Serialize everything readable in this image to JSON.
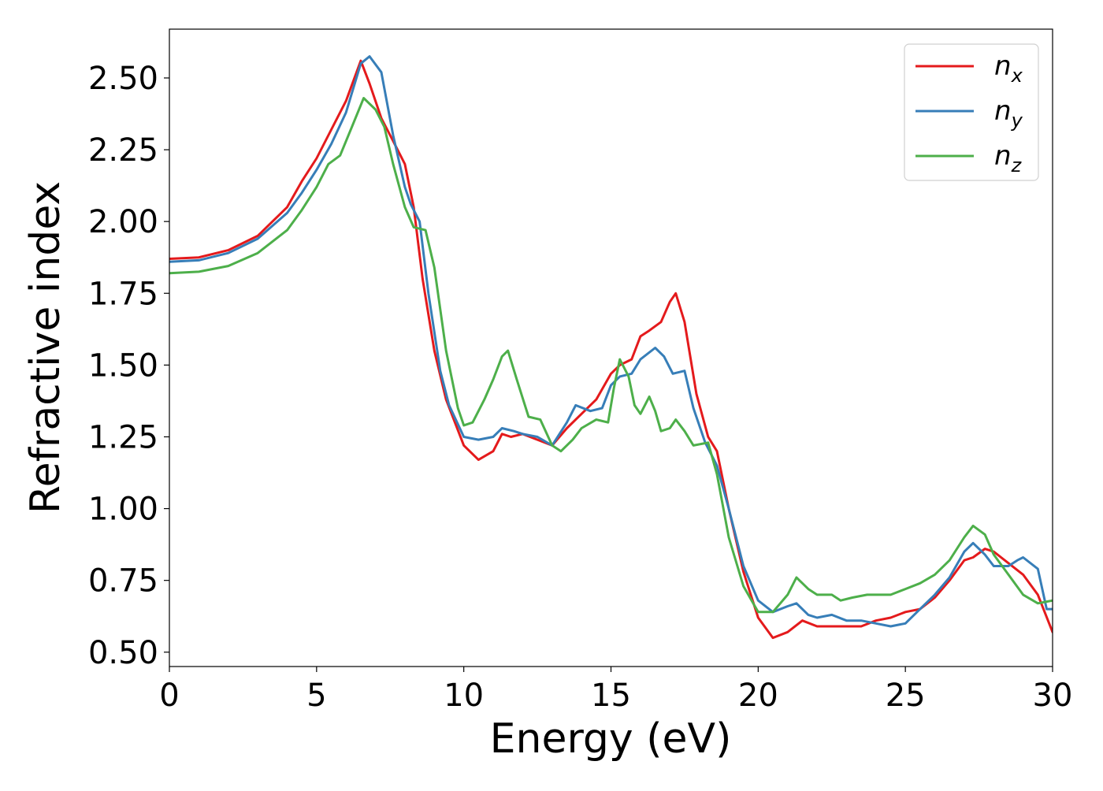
{
  "chart_data": {
    "type": "line",
    "title": "",
    "xlabel": "Energy (eV)",
    "ylabel": "Refractive index",
    "xlim": [
      0,
      30
    ],
    "ylim": [
      0.45,
      2.67
    ],
    "xticks": [
      0,
      5,
      10,
      15,
      20,
      25,
      30
    ],
    "xtick_labels": [
      "0",
      "5",
      "10",
      "15",
      "20",
      "25",
      "30"
    ],
    "yticks": [
      0.5,
      0.75,
      1.0,
      1.25,
      1.5,
      1.75,
      2.0,
      2.25,
      2.5
    ],
    "ytick_labels": [
      "0.50",
      "0.75",
      "1.00",
      "1.25",
      "1.50",
      "1.75",
      "2.00",
      "2.25",
      "2.50"
    ],
    "grid": false,
    "legend_position": "top-right",
    "series": [
      {
        "name": "n_x",
        "legend_main": "n",
        "legend_sub": "x",
        "color": "#e41a1c",
        "points": [
          [
            0,
            1.87
          ],
          [
            1,
            1.875
          ],
          [
            2,
            1.9
          ],
          [
            3,
            1.95
          ],
          [
            4,
            2.05
          ],
          [
            4.5,
            2.14
          ],
          [
            5,
            2.22
          ],
          [
            5.5,
            2.32
          ],
          [
            6,
            2.42
          ],
          [
            6.5,
            2.56
          ],
          [
            6.8,
            2.48
          ],
          [
            7.2,
            2.36
          ],
          [
            7.6,
            2.28
          ],
          [
            8,
            2.2
          ],
          [
            8.3,
            2.05
          ],
          [
            8.6,
            1.8
          ],
          [
            9,
            1.55
          ],
          [
            9.4,
            1.38
          ],
          [
            10,
            1.22
          ],
          [
            10.5,
            1.17
          ],
          [
            11,
            1.2
          ],
          [
            11.3,
            1.26
          ],
          [
            11.6,
            1.25
          ],
          [
            12,
            1.26
          ],
          [
            12.5,
            1.24
          ],
          [
            13,
            1.22
          ],
          [
            13.5,
            1.28
          ],
          [
            14,
            1.33
          ],
          [
            14.5,
            1.38
          ],
          [
            15,
            1.47
          ],
          [
            15.3,
            1.5
          ],
          [
            15.7,
            1.52
          ],
          [
            16,
            1.6
          ],
          [
            16.3,
            1.62
          ],
          [
            16.7,
            1.65
          ],
          [
            17,
            1.72
          ],
          [
            17.2,
            1.75
          ],
          [
            17.5,
            1.65
          ],
          [
            17.9,
            1.4
          ],
          [
            18.3,
            1.25
          ],
          [
            18.6,
            1.2
          ],
          [
            19,
            1.0
          ],
          [
            19.5,
            0.78
          ],
          [
            20,
            0.62
          ],
          [
            20.5,
            0.55
          ],
          [
            21,
            0.57
          ],
          [
            21.5,
            0.61
          ],
          [
            22,
            0.59
          ],
          [
            22.5,
            0.59
          ],
          [
            23,
            0.59
          ],
          [
            23.5,
            0.59
          ],
          [
            24,
            0.61
          ],
          [
            24.5,
            0.62
          ],
          [
            25,
            0.64
          ],
          [
            25.5,
            0.65
          ],
          [
            26,
            0.69
          ],
          [
            26.5,
            0.75
          ],
          [
            27,
            0.82
          ],
          [
            27.3,
            0.83
          ],
          [
            27.7,
            0.86
          ],
          [
            28,
            0.85
          ],
          [
            28.5,
            0.81
          ],
          [
            29,
            0.77
          ],
          [
            29.5,
            0.7
          ],
          [
            30,
            0.57
          ]
        ]
      },
      {
        "name": "n_y",
        "legend_main": "n",
        "legend_sub": "y",
        "color": "#377eb8",
        "points": [
          [
            0,
            1.86
          ],
          [
            1,
            1.865
          ],
          [
            2,
            1.89
          ],
          [
            3,
            1.94
          ],
          [
            4,
            2.03
          ],
          [
            4.5,
            2.1
          ],
          [
            5,
            2.18
          ],
          [
            5.5,
            2.27
          ],
          [
            6,
            2.38
          ],
          [
            6.5,
            2.55
          ],
          [
            6.8,
            2.575
          ],
          [
            7.2,
            2.52
          ],
          [
            7.6,
            2.3
          ],
          [
            8,
            2.12
          ],
          [
            8.2,
            2.06
          ],
          [
            8.5,
            2.0
          ],
          [
            8.8,
            1.75
          ],
          [
            9.2,
            1.48
          ],
          [
            9.5,
            1.36
          ],
          [
            10,
            1.25
          ],
          [
            10.5,
            1.24
          ],
          [
            11,
            1.25
          ],
          [
            11.3,
            1.28
          ],
          [
            11.7,
            1.27
          ],
          [
            12,
            1.26
          ],
          [
            12.5,
            1.25
          ],
          [
            13,
            1.22
          ],
          [
            13.5,
            1.3
          ],
          [
            13.8,
            1.36
          ],
          [
            14.3,
            1.34
          ],
          [
            14.7,
            1.35
          ],
          [
            15,
            1.43
          ],
          [
            15.3,
            1.46
          ],
          [
            15.7,
            1.47
          ],
          [
            16,
            1.52
          ],
          [
            16.5,
            1.56
          ],
          [
            16.8,
            1.53
          ],
          [
            17.1,
            1.47
          ],
          [
            17.5,
            1.48
          ],
          [
            17.8,
            1.35
          ],
          [
            18.2,
            1.23
          ],
          [
            18.6,
            1.15
          ],
          [
            19,
            1.0
          ],
          [
            19.5,
            0.8
          ],
          [
            20,
            0.68
          ],
          [
            20.5,
            0.64
          ],
          [
            21,
            0.66
          ],
          [
            21.3,
            0.67
          ],
          [
            21.7,
            0.63
          ],
          [
            22,
            0.62
          ],
          [
            22.5,
            0.63
          ],
          [
            23,
            0.61
          ],
          [
            23.5,
            0.61
          ],
          [
            24,
            0.6
          ],
          [
            24.5,
            0.59
          ],
          [
            25,
            0.6
          ],
          [
            25.5,
            0.65
          ],
          [
            26,
            0.7
          ],
          [
            26.5,
            0.76
          ],
          [
            27,
            0.85
          ],
          [
            27.3,
            0.88
          ],
          [
            27.7,
            0.84
          ],
          [
            28,
            0.8
          ],
          [
            28.5,
            0.8
          ],
          [
            28.8,
            0.82
          ],
          [
            29,
            0.83
          ],
          [
            29.5,
            0.79
          ],
          [
            29.8,
            0.65
          ],
          [
            30,
            0.65
          ]
        ]
      },
      {
        "name": "n_z",
        "legend_main": "n",
        "legend_sub": "z",
        "color": "#4daf4a",
        "points": [
          [
            0,
            1.82
          ],
          [
            1,
            1.825
          ],
          [
            2,
            1.845
          ],
          [
            3,
            1.89
          ],
          [
            4,
            1.97
          ],
          [
            4.5,
            2.04
          ],
          [
            5,
            2.12
          ],
          [
            5.4,
            2.2
          ],
          [
            5.8,
            2.23
          ],
          [
            6.2,
            2.33
          ],
          [
            6.6,
            2.43
          ],
          [
            7,
            2.39
          ],
          [
            7.3,
            2.33
          ],
          [
            7.6,
            2.2
          ],
          [
            8,
            2.05
          ],
          [
            8.3,
            1.98
          ],
          [
            8.7,
            1.97
          ],
          [
            9,
            1.84
          ],
          [
            9.4,
            1.55
          ],
          [
            9.8,
            1.35
          ],
          [
            10,
            1.29
          ],
          [
            10.3,
            1.3
          ],
          [
            10.7,
            1.38
          ],
          [
            11,
            1.45
          ],
          [
            11.3,
            1.53
          ],
          [
            11.5,
            1.55
          ],
          [
            11.8,
            1.45
          ],
          [
            12.2,
            1.32
          ],
          [
            12.6,
            1.31
          ],
          [
            13,
            1.22
          ],
          [
            13.3,
            1.2
          ],
          [
            13.7,
            1.24
          ],
          [
            14,
            1.28
          ],
          [
            14.5,
            1.31
          ],
          [
            14.9,
            1.3
          ],
          [
            15.1,
            1.42
          ],
          [
            15.3,
            1.52
          ],
          [
            15.6,
            1.46
          ],
          [
            15.8,
            1.36
          ],
          [
            16,
            1.33
          ],
          [
            16.3,
            1.39
          ],
          [
            16.5,
            1.34
          ],
          [
            16.7,
            1.27
          ],
          [
            17,
            1.28
          ],
          [
            17.2,
            1.31
          ],
          [
            17.5,
            1.27
          ],
          [
            17.8,
            1.22
          ],
          [
            18.3,
            1.23
          ],
          [
            18.6,
            1.12
          ],
          [
            19,
            0.9
          ],
          [
            19.5,
            0.73
          ],
          [
            20,
            0.64
          ],
          [
            20.5,
            0.64
          ],
          [
            21,
            0.7
          ],
          [
            21.3,
            0.76
          ],
          [
            21.7,
            0.72
          ],
          [
            22,
            0.7
          ],
          [
            22.5,
            0.7
          ],
          [
            22.8,
            0.68
          ],
          [
            23.2,
            0.69
          ],
          [
            23.7,
            0.7
          ],
          [
            24,
            0.7
          ],
          [
            24.5,
            0.7
          ],
          [
            25,
            0.72
          ],
          [
            25.5,
            0.74
          ],
          [
            26,
            0.77
          ],
          [
            26.5,
            0.82
          ],
          [
            27,
            0.9
          ],
          [
            27.3,
            0.94
          ],
          [
            27.7,
            0.91
          ],
          [
            28,
            0.84
          ],
          [
            28.5,
            0.77
          ],
          [
            29,
            0.7
          ],
          [
            29.5,
            0.67
          ],
          [
            30,
            0.68
          ]
        ]
      }
    ]
  }
}
